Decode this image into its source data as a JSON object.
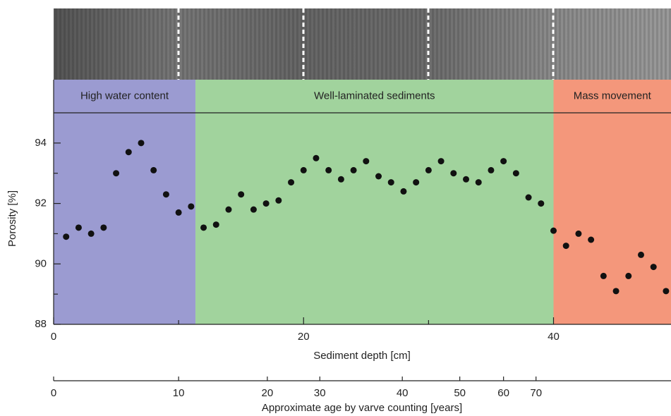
{
  "chart_data": {
    "type": "scatter",
    "xlabel": "Sediment depth [cm]",
    "ylabel": "Porosity [%]",
    "xlim": [
      0,
      49.4
    ],
    "xticks": [
      0,
      20,
      40
    ],
    "xminor_ticks": [
      10,
      30
    ],
    "ylim": [
      88,
      95
    ],
    "yticks": [
      88,
      90,
      92,
      94
    ],
    "yminor_ticks": [
      89,
      91,
      93
    ],
    "color": "#111111",
    "regions": [
      {
        "label": "High water content",
        "start": 0,
        "end": 11.35,
        "color": "#9b9bd1"
      },
      {
        "label": "Well-laminated sediments",
        "start": 11.35,
        "end": 40,
        "color": "#a1d39d"
      },
      {
        "label": "Mass movement",
        "start": 40,
        "end": 49.4,
        "color": "#f4977b"
      }
    ],
    "x": [
      1,
      2,
      3,
      4,
      5,
      6,
      7,
      8,
      9,
      10,
      11,
      12,
      13,
      14,
      15,
      16,
      17,
      18,
      19,
      20,
      21,
      22,
      23,
      24,
      25,
      26,
      27,
      28,
      29,
      30,
      31,
      32,
      33,
      34,
      35,
      36,
      37,
      38,
      39,
      40,
      41,
      42,
      43,
      44,
      45,
      46,
      47,
      48,
      49
    ],
    "values": [
      90.9,
      91.2,
      91.0,
      91.2,
      93.0,
      93.7,
      94.0,
      93.1,
      92.3,
      91.7,
      91.9,
      91.2,
      91.3,
      91.8,
      92.3,
      91.8,
      92.0,
      92.1,
      92.7,
      93.1,
      93.5,
      93.1,
      92.8,
      93.1,
      93.4,
      92.9,
      92.7,
      92.4,
      92.7,
      93.1,
      93.4,
      93.0,
      92.8,
      92.7,
      93.1,
      93.4,
      93.0,
      92.2,
      92.0,
      91.1,
      90.6,
      91.0,
      90.8,
      89.6,
      89.1,
      89.6,
      90.3,
      89.9,
      89.1
    ],
    "age_axis": {
      "label": "Approximate age by varve counting [years]",
      "ticks": [
        0,
        10,
        20,
        30,
        40,
        50,
        60,
        70
      ],
      "depths": [
        0,
        10,
        17.1,
        21.3,
        27.9,
        32.5,
        36.0,
        38.6
      ]
    }
  }
}
